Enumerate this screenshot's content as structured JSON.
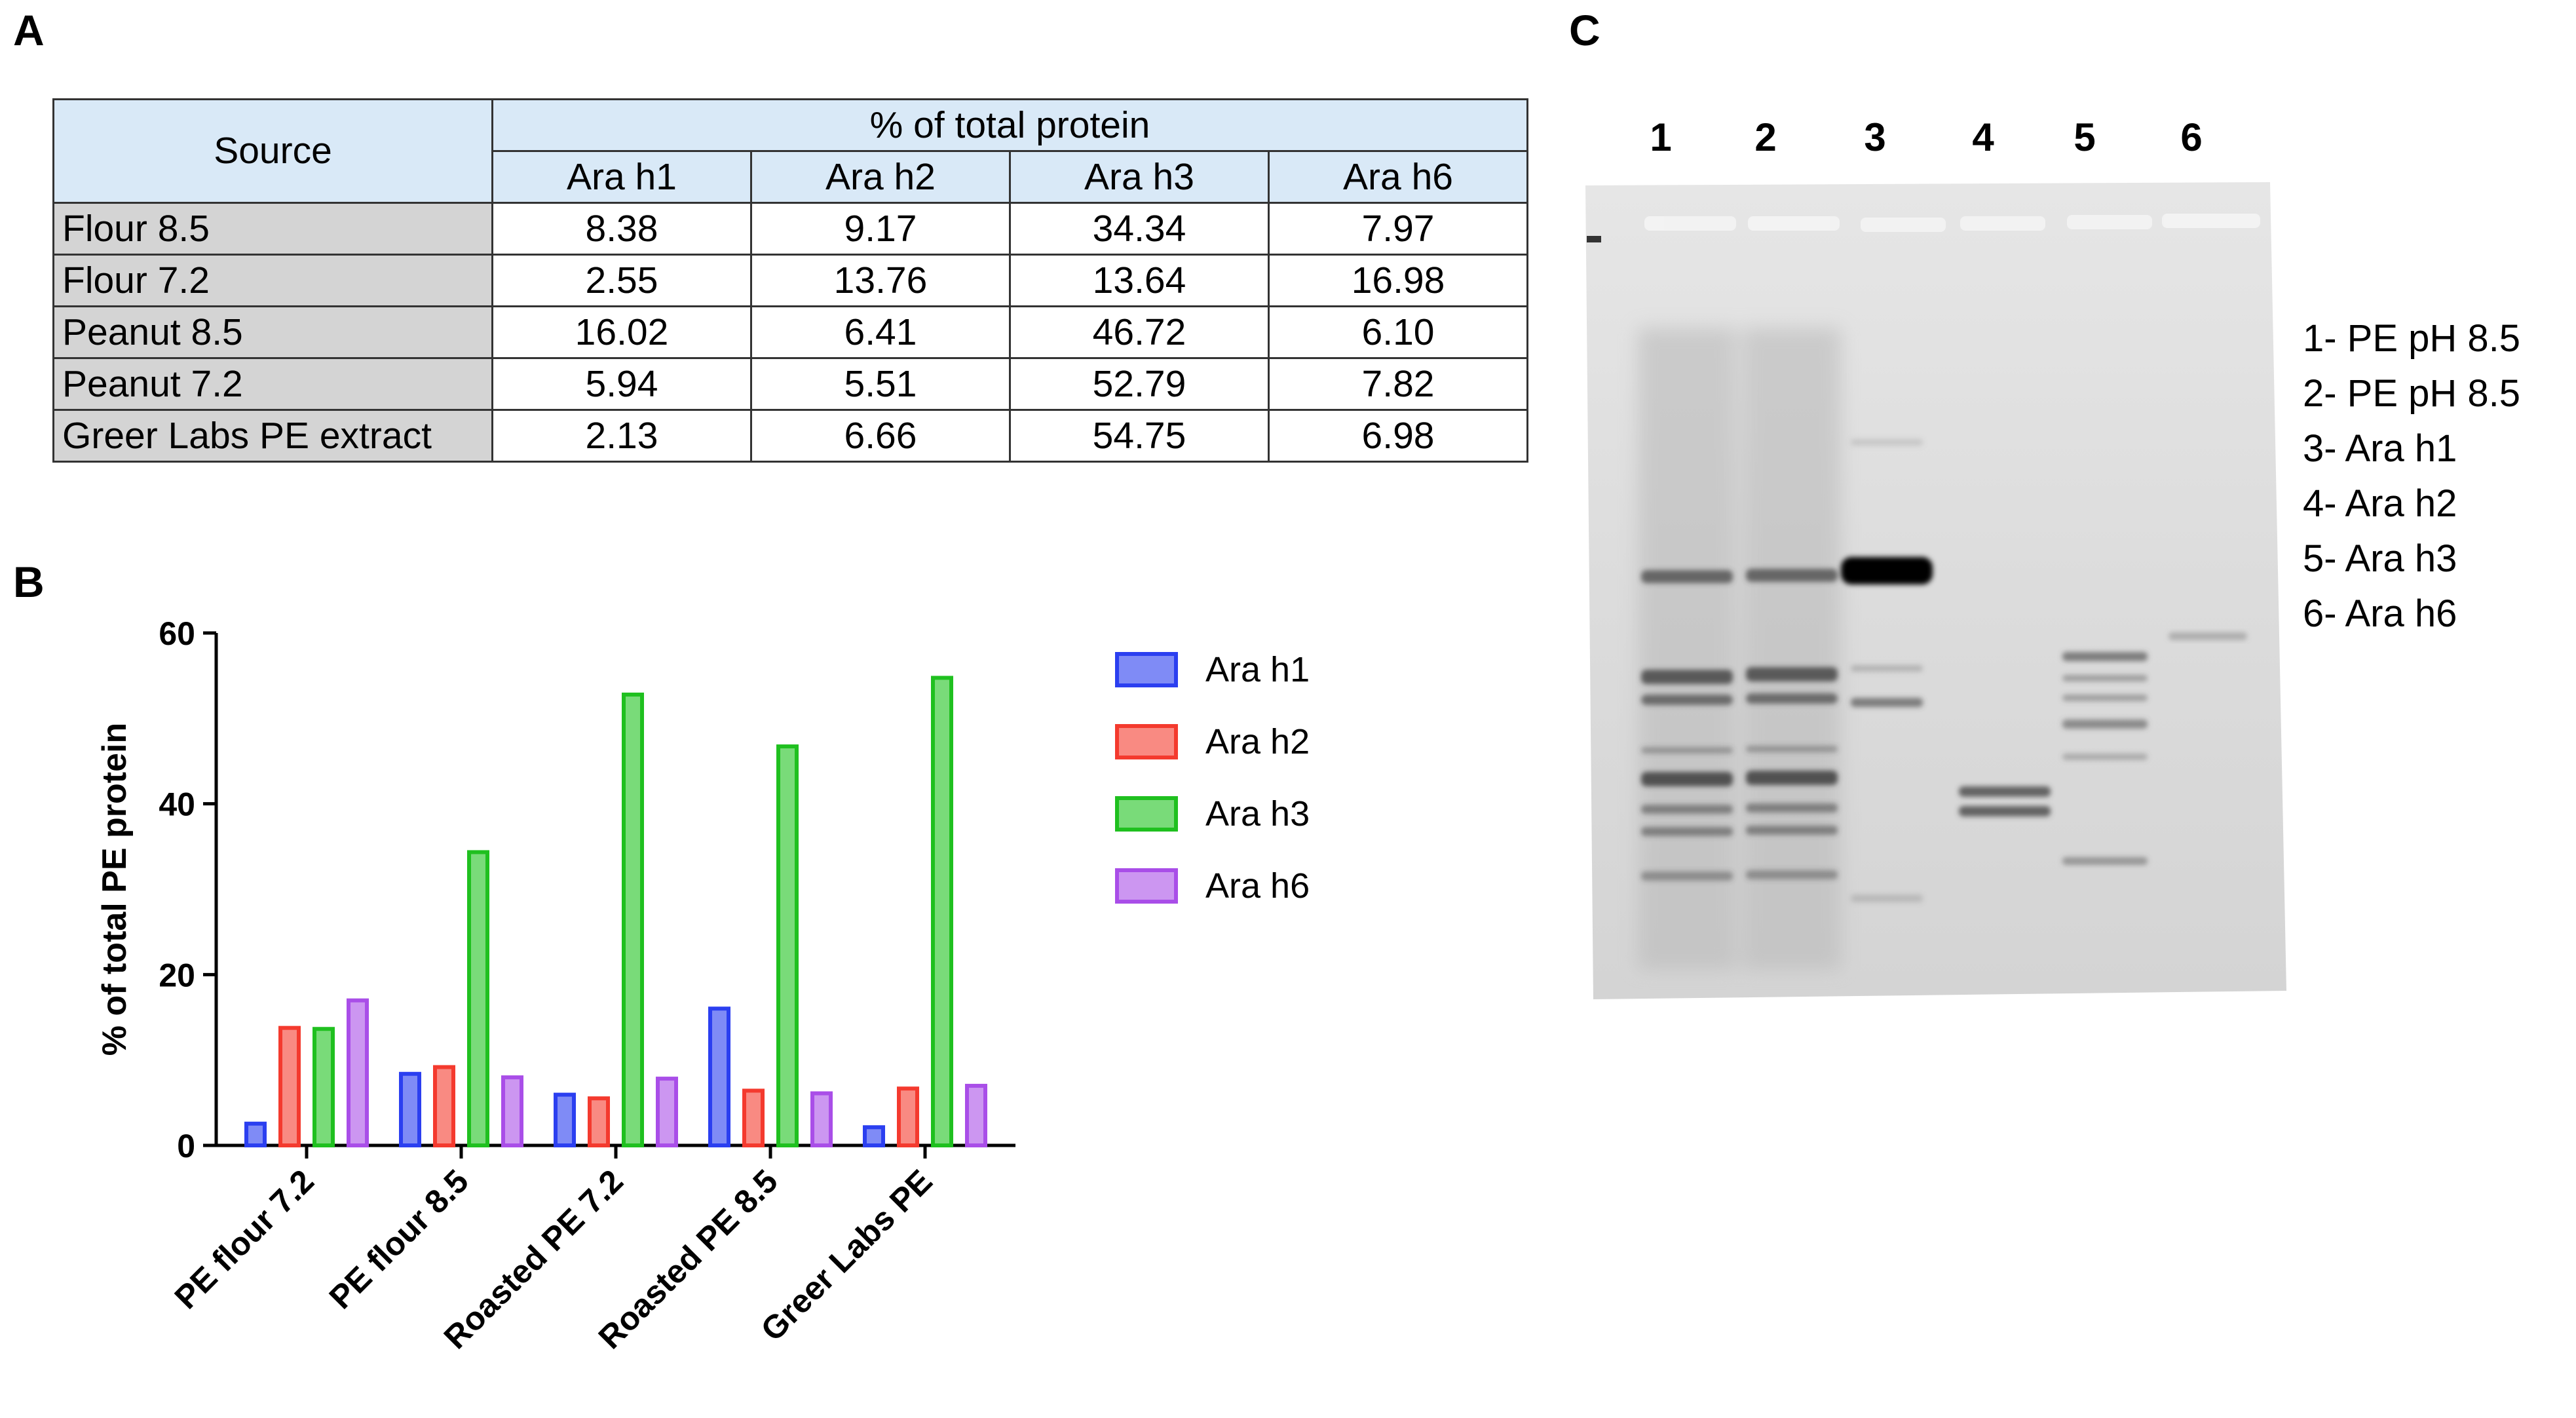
{
  "panels": {
    "a": "A",
    "b": "B",
    "c": "C"
  },
  "table": {
    "source_header": "Source",
    "group_header": "% of total protein",
    "columns": [
      "Ara h1",
      "Ara h2",
      "Ara h3",
      "Ara h6"
    ],
    "rows": [
      {
        "source": "Flour 8.5",
        "values": [
          "8.38",
          "9.17",
          "34.34",
          "7.97"
        ]
      },
      {
        "source": "Flour 7.2",
        "values": [
          "2.55",
          "13.76",
          "13.64",
          "16.98"
        ]
      },
      {
        "source": "Peanut 8.5",
        "values": [
          "16.02",
          "6.41",
          "46.72",
          "6.10"
        ]
      },
      {
        "source": "Peanut 7.2",
        "values": [
          "5.94",
          "5.51",
          "52.79",
          "7.82"
        ]
      },
      {
        "source": "Greer Labs PE extract",
        "values": [
          "2.13",
          "6.66",
          "54.75",
          "6.98"
        ]
      }
    ]
  },
  "chart_data": {
    "type": "bar",
    "categories": [
      "PE flour 7.2",
      "PE flour 8.5",
      "Roasted PE 7.2",
      "Roasted PE 8.5",
      "Greer Labs PE"
    ],
    "ylabel": "% of total PE protein",
    "ylim": [
      0,
      60
    ],
    "yticks": [
      0,
      20,
      40,
      60
    ],
    "legend_position": "right",
    "series": [
      {
        "name": "Ara h1",
        "color": "#2b3ff0",
        "fill": "#7f8bf6",
        "values": [
          2.55,
          8.38,
          5.94,
          16.02,
          2.13
        ]
      },
      {
        "name": "Ara h2",
        "color": "#f43a2e",
        "fill": "#f98a82",
        "values": [
          13.76,
          9.17,
          5.51,
          6.41,
          6.66
        ]
      },
      {
        "name": "Ara h3",
        "color": "#1fc01f",
        "fill": "#79db79",
        "values": [
          13.64,
          34.34,
          52.79,
          46.72,
          54.75
        ]
      },
      {
        "name": "Ara h6",
        "color": "#a94ee8",
        "fill": "#cc96f1",
        "values": [
          16.98,
          7.97,
          7.82,
          6.1,
          6.98
        ]
      }
    ]
  },
  "gel": {
    "lane_numbers": [
      "1",
      "2",
      "3",
      "4",
      "5",
      "6"
    ],
    "key": [
      "1- PE pH 8.5",
      "2- PE pH 8.5",
      "3- Ara h1",
      "4- Ara h2",
      "5- Ara h3",
      "6- Ara h6"
    ]
  }
}
